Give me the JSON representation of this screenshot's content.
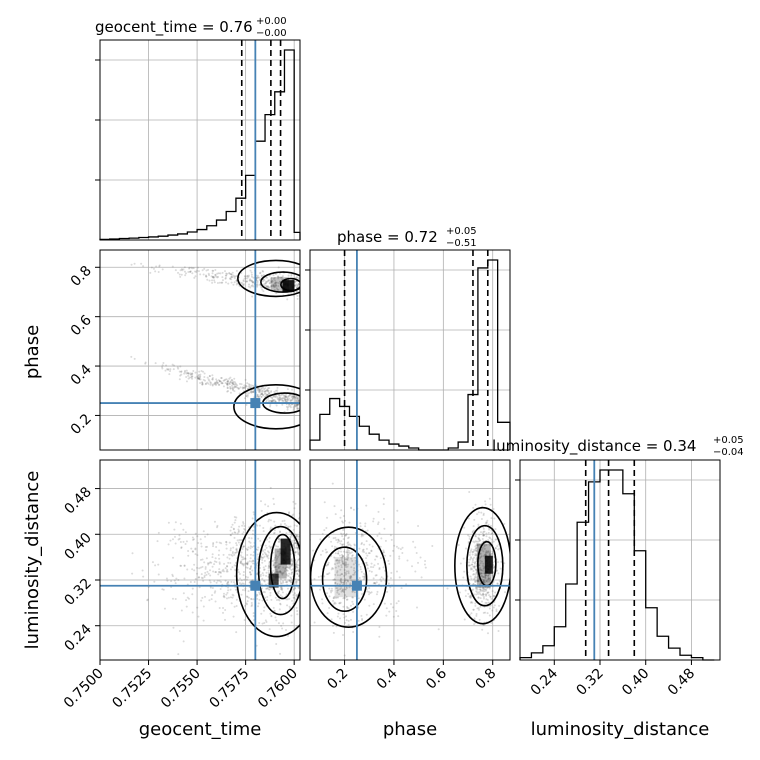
{
  "chart_data": {
    "type": "corner",
    "parameters": [
      "geocent_time",
      "phase",
      "luminosity_distance"
    ],
    "truths": {
      "geocent_time": 0.758,
      "phase": 0.25,
      "luminosity_distance": 0.31
    },
    "colors": {
      "truth": "#4682b4",
      "hist": "#000000",
      "grid": "#b0b0b0",
      "scatter": "#6e6e6e"
    },
    "grid": true,
    "titles": [
      {
        "param": "geocent_time",
        "label": "geocent_time = 0.76",
        "plus": "+0.00",
        "minus": "−0.00"
      },
      {
        "param": "phase",
        "label": "phase = 0.72",
        "plus": "+0.05",
        "minus": "−0.51"
      },
      {
        "param": "luminosity_distance",
        "label": "luminosity_distance = 0.34",
        "plus": "+0.05",
        "minus": "−0.04"
      }
    ],
    "ranges": {
      "geocent_time": [
        0.75,
        0.7603
      ],
      "phase": [
        0.06,
        0.87
      ],
      "luminosity_distance": [
        0.18,
        0.53
      ]
    },
    "ticks": {
      "geocent_time": {
        "values": [
          0.75,
          0.7525,
          0.755,
          0.7575,
          0.76
        ],
        "labels": [
          "0.7500",
          "0.7525",
          "0.7550",
          "0.7575",
          "0.7600"
        ]
      },
      "phase_y": {
        "values": [
          0.2,
          0.4,
          0.6,
          0.8
        ],
        "labels": [
          "0.2",
          "0.4",
          "0.6",
          "0.8"
        ]
      },
      "phase_x": {
        "values": [
          0.2,
          0.4,
          0.6,
          0.8
        ],
        "labels": [
          "0.2",
          "0.4",
          "0.6",
          "0.8"
        ]
      },
      "luminosity_distance": {
        "values": [
          0.24,
          0.32,
          0.4,
          0.48
        ],
        "labels": [
          "0.24",
          "0.32",
          "0.40",
          "0.48"
        ]
      }
    },
    "quantiles": {
      "geocent_time": [
        0.7573,
        0.7588,
        0.7593
      ],
      "phase": [
        0.2,
        0.72,
        0.78
      ],
      "luminosity_distance": [
        0.295,
        0.335,
        0.38
      ]
    },
    "histograms": {
      "geocent_time": {
        "edges": [
          0.75,
          0.7505,
          0.751,
          0.7515,
          0.752,
          0.7525,
          0.753,
          0.7535,
          0.754,
          0.7545,
          0.755,
          0.7555,
          0.756,
          0.7565,
          0.757,
          0.7575,
          0.758,
          0.7585,
          0.759,
          0.7595,
          0.76,
          0.7603
        ],
        "counts": [
          0.3,
          0.5,
          0.8,
          1.0,
          1.3,
          1.6,
          2.0,
          2.6,
          3.2,
          4.2,
          5.5,
          7.5,
          10.5,
          15,
          22,
          34,
          52,
          66,
          78,
          100,
          4
        ]
      },
      "phase": {
        "edges": [
          0.06,
          0.1,
          0.14,
          0.18,
          0.22,
          0.26,
          0.3,
          0.34,
          0.38,
          0.42,
          0.46,
          0.5,
          0.54,
          0.58,
          0.62,
          0.66,
          0.7,
          0.74,
          0.78,
          0.82,
          0.87
        ],
        "counts": [
          5,
          18,
          26,
          22,
          17,
          12,
          8,
          5,
          3,
          2,
          1,
          0,
          0,
          0,
          1,
          4,
          28,
          92,
          96,
          14
        ]
      },
      "luminosity_distance": {
        "edges": [
          0.18,
          0.2,
          0.22,
          0.24,
          0.26,
          0.28,
          0.3,
          0.32,
          0.34,
          0.36,
          0.38,
          0.4,
          0.42,
          0.44,
          0.46,
          0.48,
          0.5,
          0.52
        ],
        "counts": [
          1,
          3,
          6,
          14,
          32,
          58,
          75,
          80,
          80,
          70,
          46,
          22,
          10,
          5,
          2,
          1,
          0
        ]
      }
    }
  }
}
